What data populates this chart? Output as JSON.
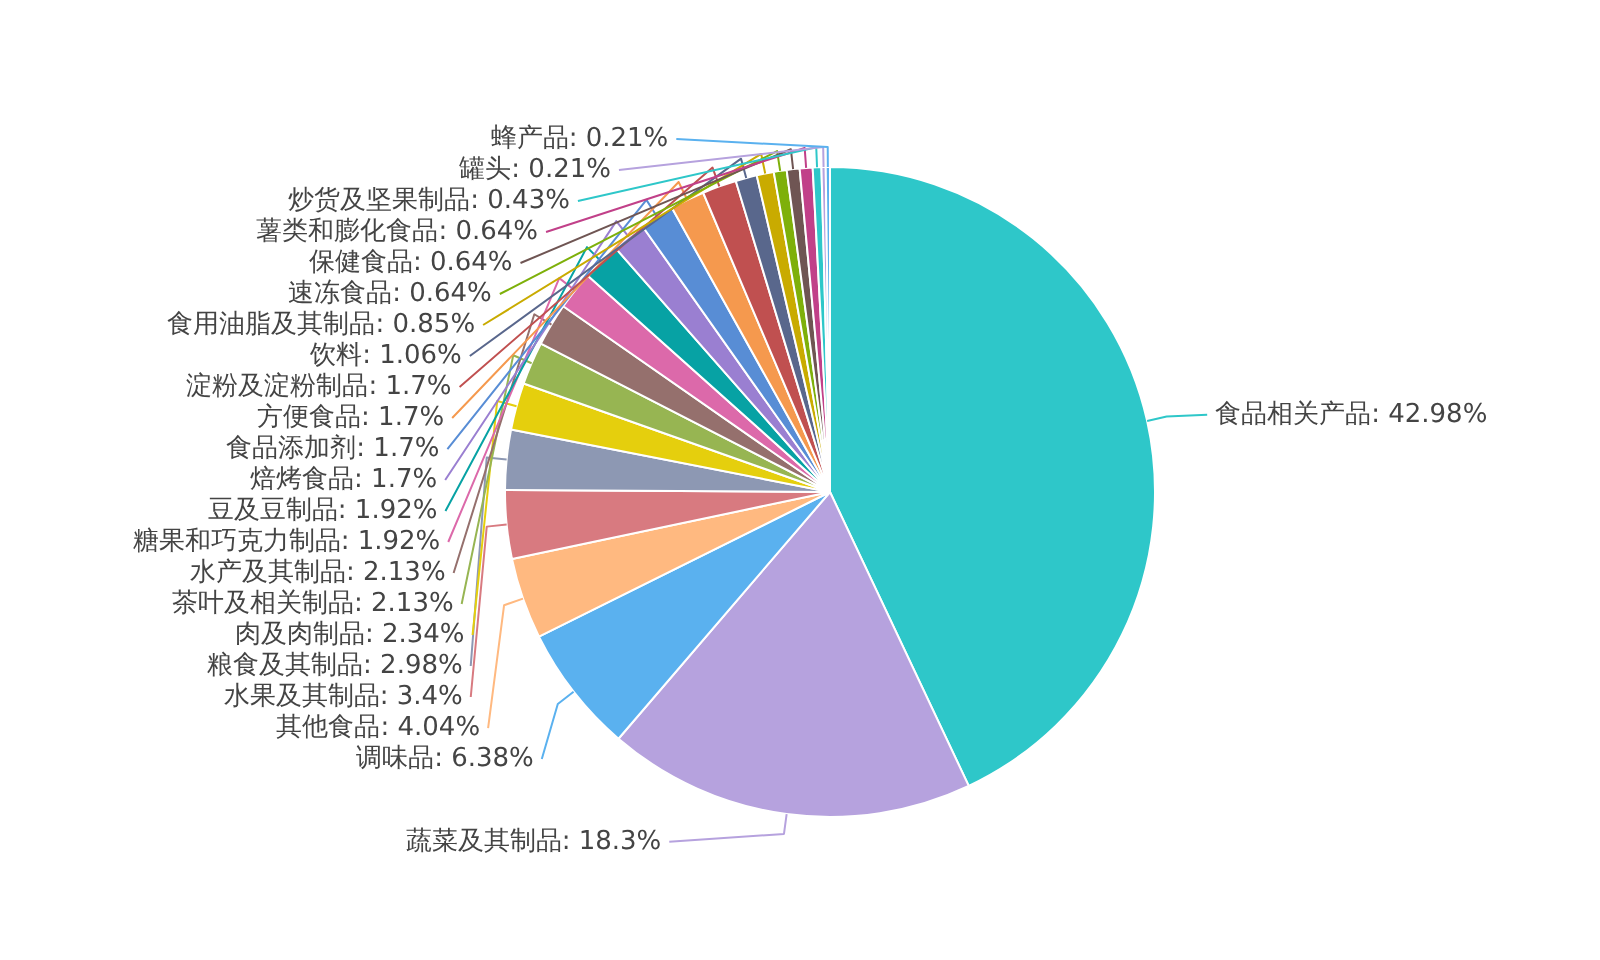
{
  "chart_data": {
    "type": "pie",
    "categories": [
      "食品相关产品",
      "蔬菜及其制品",
      "调味品",
      "其他食品",
      "水果及其制品",
      "粮食及其制品",
      "肉及肉制品",
      "茶叶及相关制品",
      "水产及其制品",
      "糖果和巧克力制品",
      "豆及豆制品",
      "焙烤食品",
      "食品添加剂",
      "方便食品",
      "淀粉及淀粉制品",
      "饮料",
      "食用油脂及其制品",
      "速冻食品",
      "保健食品",
      "薯类和膨化食品",
      "炒货及坚果制品",
      "罐头",
      "蜂产品"
    ],
    "values": [
      42.98,
      18.3,
      6.38,
      4.04,
      3.4,
      2.98,
      2.34,
      2.13,
      2.13,
      1.92,
      1.92,
      1.7,
      1.7,
      1.7,
      1.7,
      1.06,
      0.85,
      0.64,
      0.64,
      0.64,
      0.43,
      0.21,
      0.21
    ],
    "value_labels": [
      "42.98%",
      "18.3%",
      "6.38%",
      "4.04%",
      "3.4%",
      "2.98%",
      "2.34%",
      "2.13%",
      "2.13%",
      "1.92%",
      "1.92%",
      "1.7%",
      "1.7%",
      "1.7%",
      "1.7%",
      "1.06%",
      "0.85%",
      "0.64%",
      "0.64%",
      "0.64%",
      "0.43%",
      "0.21%",
      "0.21%"
    ],
    "colors": [
      "#2ec7c9",
      "#b6a2de",
      "#5ab1ef",
      "#ffb980",
      "#d87a80",
      "#8d98b3",
      "#e5cf0d",
      "#97b552",
      "#95706d",
      "#dc69aa",
      "#07a2a4",
      "#9a7fd1",
      "#588dd5",
      "#f5994e",
      "#c05050",
      "#59678c",
      "#c9ab00",
      "#7eb00a",
      "#6f5553",
      "#c14089",
      "#2ec7c9",
      "#b6a2de",
      "#5ab1ef"
    ]
  }
}
